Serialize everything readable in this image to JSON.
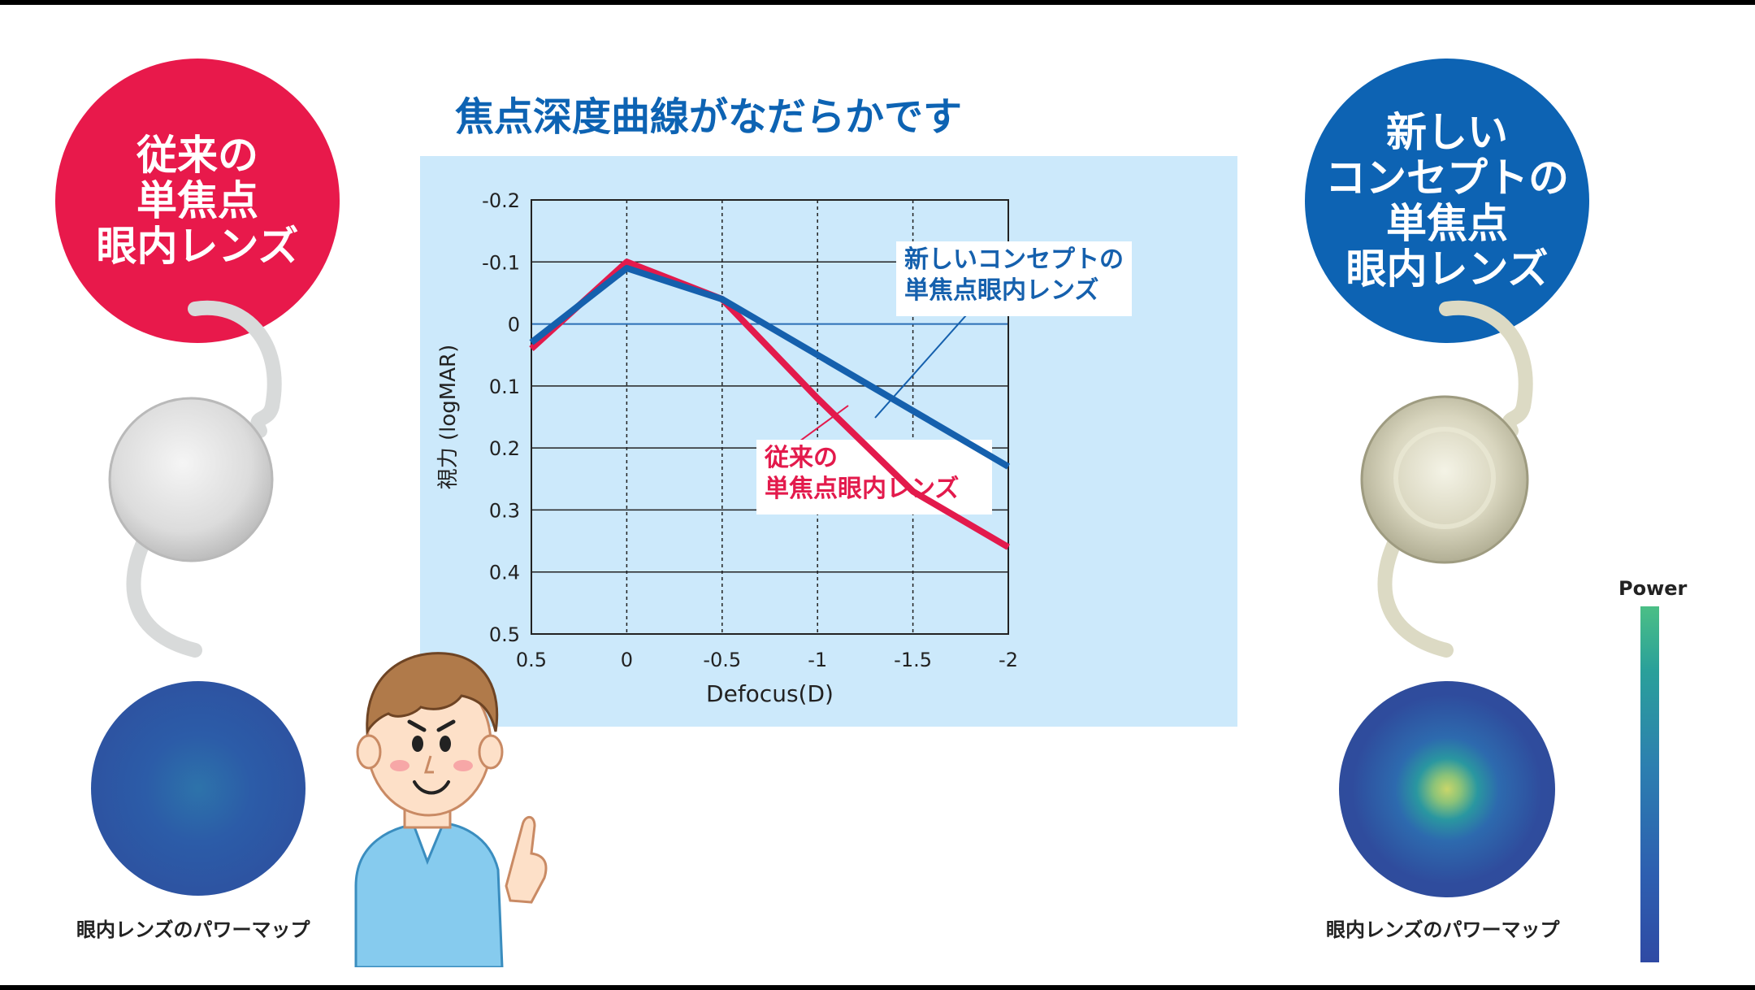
{
  "left_badge": {
    "lines": [
      "従来の",
      "単焦点",
      "眼内レンズ"
    ],
    "color": "#e8194b"
  },
  "right_badge": {
    "lines": [
      "新しい",
      "コンセプトの",
      "単焦点",
      "眼内レンズ"
    ],
    "color": "#0d63b3"
  },
  "chart_heading": "焦点深度曲線がなだらかです",
  "left_caption": "眼内レンズのパワーマップ",
  "right_caption": "眼内レンズのパワーマップ",
  "colorbar": {
    "label": "Power",
    "colors": [
      "#4bbf86",
      "#2aa09a",
      "#2c7fb0",
      "#2d5fb0",
      "#2f4aa4"
    ]
  },
  "chart_data": {
    "type": "line",
    "title": "焦点深度曲線がなだらかです",
    "xlabel": "Defocus(D)",
    "ylabel": "視力 (logMAR)",
    "x": [
      0.5,
      0,
      -0.5,
      -1,
      -1.5,
      -2
    ],
    "x_tick_labels": [
      "0.5",
      "0",
      "-0.5",
      "-1",
      "-1.5",
      "-2"
    ],
    "y_tick_labels": [
      "-0.2",
      "-0.1",
      "0",
      "0.1",
      "0.2",
      "0.3",
      "0.4",
      "0.5"
    ],
    "y_ticks": [
      -0.2,
      -0.1,
      0,
      0.1,
      0.2,
      0.3,
      0.4,
      0.5
    ],
    "xlim": [
      0.5,
      -2
    ],
    "ylim": [
      -0.2,
      0.5
    ],
    "y_inverted": true,
    "grid": {
      "vertical": "dashed",
      "horizontal": "solid"
    },
    "series": [
      {
        "name": "新しいコンセプトの単焦点眼内レンズ",
        "label_lines": [
          "新しいコンセプトの",
          "単焦点眼内レンズ"
        ],
        "color": "#1560ad",
        "values": [
          0.03,
          -0.09,
          -0.04,
          0.05,
          0.14,
          0.23
        ]
      },
      {
        "name": "従来の単焦点眼内レンズ",
        "label_lines": [
          "従来の",
          "単焦点眼内レンズ"
        ],
        "color": "#e31a4c",
        "values": [
          0.04,
          -0.1,
          -0.04,
          0.12,
          0.27,
          0.36
        ]
      }
    ]
  }
}
